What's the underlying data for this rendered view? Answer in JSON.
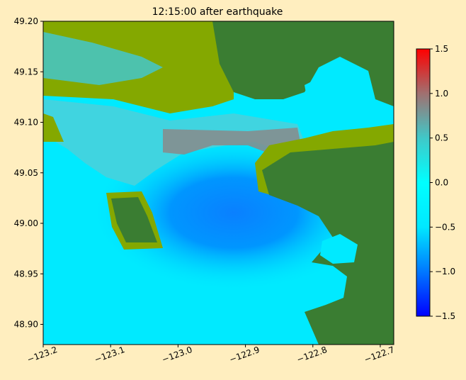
{
  "chart_data": {
    "type": "map",
    "title": "12:15:00 after earthquake",
    "xlim": [
      -123.2,
      -122.68
    ],
    "ylim": [
      48.88,
      49.2
    ],
    "xticks": [
      {
        "value": -123.2,
        "label": "−123.2"
      },
      {
        "value": -123.1,
        "label": "−123.1"
      },
      {
        "value": -123.0,
        "label": "−123.0"
      },
      {
        "value": -122.9,
        "label": "−122.9"
      },
      {
        "value": -122.8,
        "label": "−122.8"
      },
      {
        "value": -122.7,
        "label": "−122.7"
      }
    ],
    "yticks": [
      {
        "value": 48.9,
        "label": "48.90"
      },
      {
        "value": 48.95,
        "label": "48.95"
      },
      {
        "value": 49.0,
        "label": "49.00"
      },
      {
        "value": 49.05,
        "label": "49.05"
      },
      {
        "value": 49.1,
        "label": "49.10"
      },
      {
        "value": 49.15,
        "label": "49.15"
      },
      {
        "value": 49.2,
        "label": "49.20"
      }
    ],
    "colorbar": {
      "clim": [
        -1.5,
        1.5
      ],
      "ticks": [
        {
          "value": -1.5,
          "label": "−1.5"
        },
        {
          "value": -1.0,
          "label": "−1.0"
        },
        {
          "value": -0.5,
          "label": "−0.5"
        },
        {
          "value": 0.0,
          "label": "0.0"
        },
        0.5,
        {
          "value": 1.0,
          "label": "1.0"
        },
        1.5
      ],
      "colors": [
        "#0000ff",
        "#0078ff",
        "#00e8ff",
        "#00ffff",
        "#40c8c8",
        "#a07070",
        "#ff0000"
      ]
    }
  }
}
